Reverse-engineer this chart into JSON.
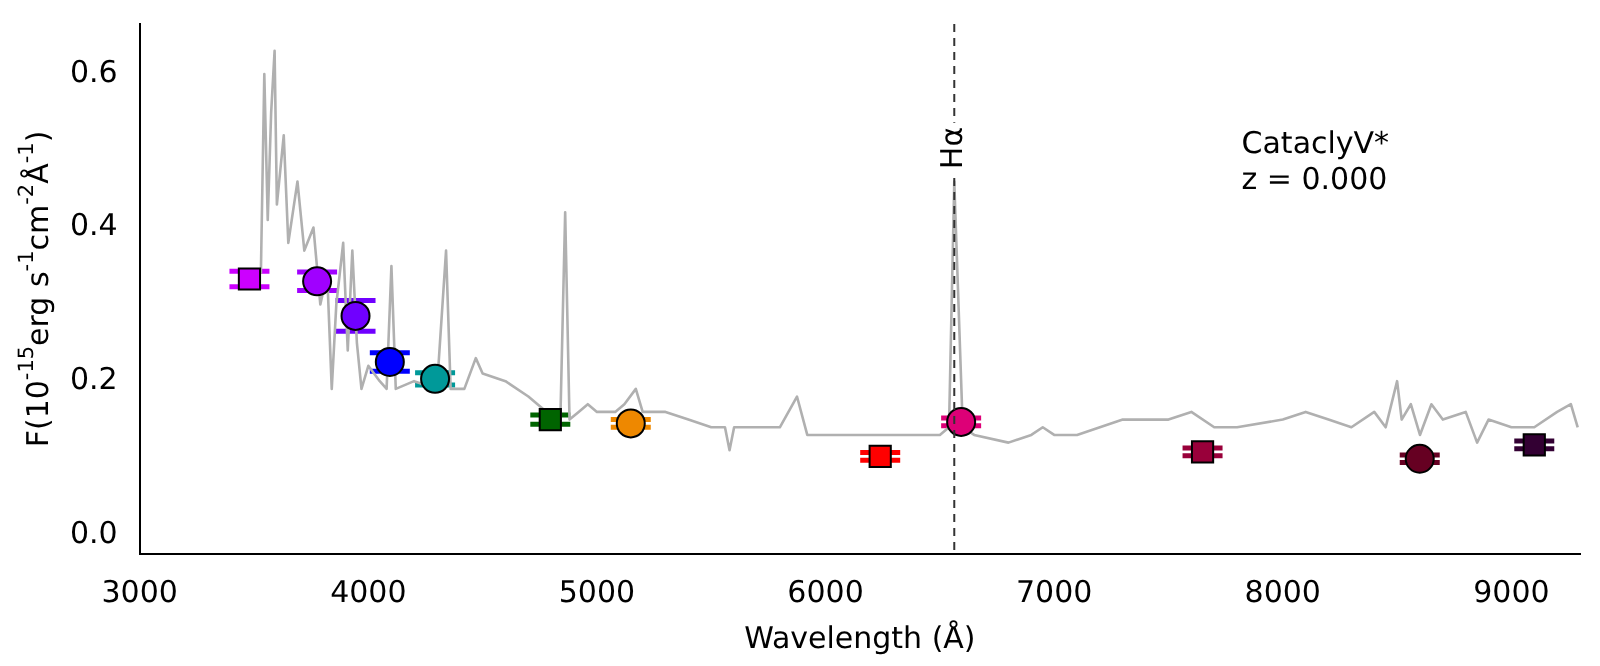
{
  "chart_data": {
    "type": "line",
    "xlabel": "Wavelength (Å)",
    "ylabel": "F(10$^{-15}$erg s$^{-1}$cm$^{-2}$Å$^{-1}$)",
    "xlim": [
      3000,
      9300
    ],
    "ylim": [
      -0.025,
      0.665
    ],
    "xticks": [
      3000,
      4000,
      5000,
      6000,
      7000,
      8000,
      9000
    ],
    "yticks": [
      {
        "value": 0,
        "label": "0.0"
      },
      {
        "value": 0.2,
        "label": "0.2"
      },
      {
        "value": 0.4,
        "label": "0.4"
      },
      {
        "value": 0.6,
        "label": "0.6"
      }
    ],
    "grid": false,
    "legend": false,
    "ref_lines": [
      {
        "axis": "x",
        "value": 6563,
        "label": "Hα",
        "color": "#333333",
        "line_style": "dashed"
      }
    ],
    "annotations": [
      "CataclyV*",
      "z = 0.000"
    ],
    "series": [
      {
        "color": "#b0b0b0",
        "marker": "none",
        "x": [
          3530,
          3545,
          3560,
          3575,
          3590,
          3600,
          3630,
          3650,
          3690,
          3720,
          3760,
          3790,
          3820,
          3840,
          3860,
          3890,
          3910,
          3930,
          3950,
          3970,
          4000,
          4050,
          4080,
          4101,
          4120,
          4200,
          4300,
          4340,
          4360,
          4420,
          4470,
          4500,
          4600,
          4700,
          4780,
          4840,
          4861,
          4880,
          4920,
          4960,
          5000,
          5080,
          5120,
          5170,
          5200,
          5300,
          5400,
          5500,
          5560,
          5580,
          5600,
          5700,
          5800,
          5875,
          5920,
          6000,
          6100,
          6200,
          6300,
          6400,
          6500,
          6540,
          6563,
          6600,
          6650,
          6800,
          6900,
          6950,
          7000,
          7100,
          7300,
          7500,
          7600,
          7700,
          7800,
          8000,
          8100,
          8200,
          8300,
          8400,
          8450,
          8500,
          8520,
          8560,
          8600,
          8650,
          8700,
          8800,
          8850,
          8900,
          9000,
          9100,
          9200,
          9260,
          9290
        ],
        "values": [
          0.34,
          0.6,
          0.41,
          0.55,
          0.63,
          0.43,
          0.52,
          0.38,
          0.46,
          0.37,
          0.4,
          0.3,
          0.34,
          0.19,
          0.3,
          0.38,
          0.24,
          0.37,
          0.25,
          0.19,
          0.22,
          0.2,
          0.19,
          0.35,
          0.19,
          0.2,
          0.19,
          0.37,
          0.19,
          0.19,
          0.23,
          0.21,
          0.2,
          0.18,
          0.16,
          0.15,
          0.42,
          0.15,
          0.16,
          0.17,
          0.16,
          0.16,
          0.17,
          0.19,
          0.16,
          0.16,
          0.15,
          0.14,
          0.14,
          0.11,
          0.14,
          0.14,
          0.14,
          0.18,
          0.13,
          0.13,
          0.13,
          0.13,
          0.13,
          0.13,
          0.13,
          0.14,
          0.46,
          0.14,
          0.13,
          0.12,
          0.13,
          0.14,
          0.13,
          0.13,
          0.15,
          0.15,
          0.16,
          0.14,
          0.14,
          0.15,
          0.16,
          0.15,
          0.14,
          0.16,
          0.14,
          0.2,
          0.15,
          0.17,
          0.13,
          0.17,
          0.15,
          0.16,
          0.12,
          0.15,
          0.14,
          0.14,
          0.16,
          0.17,
          0.14
        ]
      },
      {
        "type": "scatter",
        "marker": "square",
        "x": [
          3480,
          4796,
          6239,
          7649,
          9100
        ],
        "values": [
          0.333,
          0.15,
          0.102,
          0.108,
          0.117
        ],
        "colors": [
          "#cc00ff",
          "#006400",
          "#ff0000",
          "#99003a",
          "#330033"
        ],
        "errors": [
          0.01,
          0.006,
          0.005,
          0.005,
          0.005
        ]
      },
      {
        "type": "scatter",
        "marker": "circle",
        "x": [
          3776,
          3944,
          4094,
          4292,
          5148,
          6593,
          8599
        ],
        "values": [
          0.33,
          0.285,
          0.225,
          0.203,
          0.145,
          0.147,
          0.099
        ],
        "colors": [
          "#a000ff",
          "#7000ff",
          "#0000ff",
          "#009999",
          "#ee8800",
          "#dd0077",
          "#660022"
        ],
        "errors": [
          0.012,
          0.02,
          0.012,
          0.008,
          0.005,
          0.005,
          0.005
        ]
      }
    ]
  }
}
